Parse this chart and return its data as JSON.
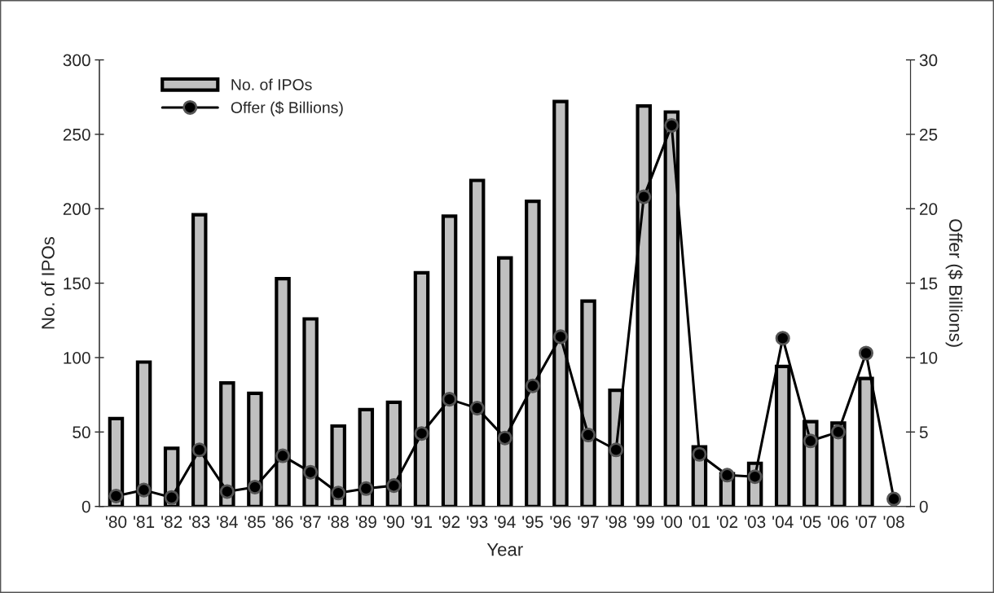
{
  "chart_data": {
    "type": "bar",
    "xlabel": "Year",
    "ylabel": "No. of IPOs",
    "y2label": "Offer ($ Billions)",
    "categories": [
      "'80",
      "'81",
      "'82",
      "'83",
      "'84",
      "'85",
      "'86",
      "'87",
      "'88",
      "'89",
      "'90",
      "'91",
      "'92",
      "'93",
      "'94",
      "'95",
      "'96",
      "'97",
      "'98",
      "'99",
      "'00",
      "'01",
      "'02",
      "'03",
      "'04",
      "'05",
      "'06",
      "'07",
      "'08"
    ],
    "series": [
      {
        "name": "No. of IPOs",
        "color": "#c0c0c0",
        "values": [
          59,
          97,
          39,
          196,
          83,
          76,
          153,
          126,
          54,
          65,
          70,
          157,
          195,
          219,
          167,
          205,
          272,
          138,
          78,
          269,
          265,
          40,
          22,
          29,
          94,
          57,
          56,
          86,
          null
        ]
      },
      {
        "name": "Offer ($ Billions)",
        "type": "line",
        "axis": "y2",
        "color": "#000000",
        "marker": "circle",
        "values": [
          0.7,
          1.1,
          0.6,
          3.8,
          1.0,
          1.3,
          3.4,
          2.3,
          0.9,
          1.2,
          1.4,
          4.9,
          7.2,
          6.6,
          4.6,
          8.1,
          11.4,
          4.8,
          3.8,
          20.8,
          25.6,
          3.5,
          2.1,
          2.0,
          11.3,
          4.4,
          5.0,
          10.3,
          0.5
        ]
      }
    ],
    "ylim": [
      0,
      300
    ],
    "yticks": [
      0,
      50,
      100,
      150,
      200,
      250,
      300
    ],
    "y2lim": [
      0,
      30
    ],
    "y2ticks": [
      0,
      5,
      10,
      15,
      20,
      25,
      30
    ],
    "grid": false,
    "legend": "top left"
  }
}
